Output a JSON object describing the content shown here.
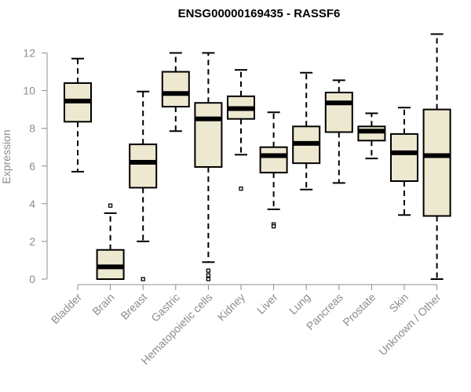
{
  "chart_data": {
    "type": "boxplot",
    "title": "ENSG00000169435 - RASSF6",
    "ylabel": "Expression",
    "ylim": [
      0,
      13
    ],
    "yticks": [
      0,
      2,
      4,
      6,
      8,
      10,
      12
    ],
    "grid": false,
    "legend": "none",
    "colors": {
      "box_fill": "#ede8d0",
      "stroke": "#000000",
      "axis": "#8c8c8c"
    },
    "categories": [
      "Bladder",
      "Brain",
      "Breast",
      "Gastric",
      "Hematopoietic cells",
      "Kidney",
      "Liver",
      "Lung",
      "Pancreas",
      "Prostate",
      "Skin",
      "Unknown / Other"
    ],
    "boxes": [
      {
        "category": "Bladder",
        "whisker_low": 5.7,
        "q1": 8.35,
        "median": 9.45,
        "q3": 10.4,
        "whisker_high": 11.7,
        "outliers": []
      },
      {
        "category": "Brain",
        "whisker_low": 0.0,
        "q1": 0.0,
        "median": 0.65,
        "q3": 1.55,
        "whisker_high": 3.5,
        "outliers": [
          3.9
        ]
      },
      {
        "category": "Breast",
        "whisker_low": 2.0,
        "q1": 4.85,
        "median": 6.2,
        "q3": 7.15,
        "whisker_high": 9.95,
        "outliers": [
          0.0
        ]
      },
      {
        "category": "Gastric",
        "whisker_low": 7.85,
        "q1": 9.15,
        "median": 9.85,
        "q3": 11.0,
        "whisker_high": 12.0,
        "outliers": []
      },
      {
        "category": "Hematopoietic cells",
        "whisker_low": 0.9,
        "q1": 5.95,
        "median": 8.5,
        "q3": 9.35,
        "whisker_high": 12.0,
        "outliers": [
          0.45,
          0.2,
          0.0
        ]
      },
      {
        "category": "Kidney",
        "whisker_low": 6.6,
        "q1": 8.5,
        "median": 9.05,
        "q3": 9.7,
        "whisker_high": 11.1,
        "outliers": [
          4.8
        ]
      },
      {
        "category": "Liver",
        "whisker_low": 3.7,
        "q1": 5.65,
        "median": 6.55,
        "q3": 7.0,
        "whisker_high": 8.85,
        "outliers": [
          2.9,
          2.8
        ]
      },
      {
        "category": "Lung",
        "whisker_low": 4.75,
        "q1": 6.15,
        "median": 7.2,
        "q3": 8.1,
        "whisker_high": 10.95,
        "outliers": []
      },
      {
        "category": "Pancreas",
        "whisker_low": 5.1,
        "q1": 7.8,
        "median": 9.35,
        "q3": 9.9,
        "whisker_high": 10.55,
        "outliers": []
      },
      {
        "category": "Prostate",
        "whisker_low": 6.4,
        "q1": 7.35,
        "median": 7.85,
        "q3": 8.1,
        "whisker_high": 8.8,
        "outliers": []
      },
      {
        "category": "Skin",
        "whisker_low": 3.4,
        "q1": 5.2,
        "median": 6.7,
        "q3": 7.7,
        "whisker_high": 9.1,
        "outliers": []
      },
      {
        "category": "Unknown / Other",
        "whisker_low": 0.0,
        "q1": 3.35,
        "median": 6.55,
        "q3": 9.0,
        "whisker_high": 13.0,
        "outliers": []
      }
    ]
  }
}
